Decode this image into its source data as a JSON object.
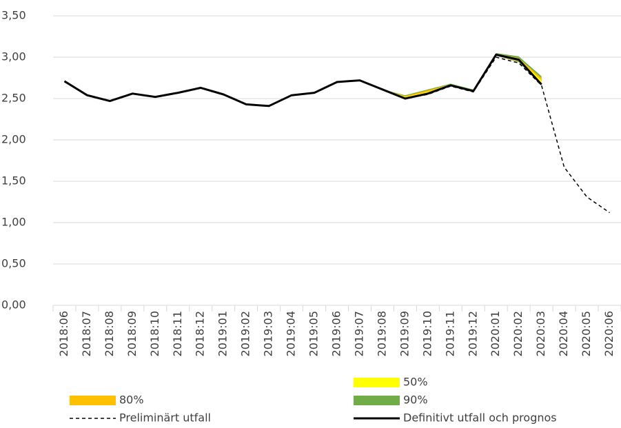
{
  "chart_data": {
    "type": "line",
    "categories": [
      "2018:06",
      "2018:07",
      "2018:08",
      "2018:09",
      "2018:10",
      "2018:11",
      "2018:12",
      "2019:01",
      "2019:02",
      "2019:03",
      "2019:04",
      "2019:05",
      "2019:06",
      "2019:07",
      "2019:08",
      "2019:09",
      "2019:10",
      "2019:11",
      "2019:12",
      "2020:01",
      "2020:02",
      "2020:03",
      "2020:04",
      "2020:05",
      "2020:06"
    ],
    "ylim": [
      0,
      3.5
    ],
    "yticks": [
      {
        "value": 0,
        "label": "0,00"
      },
      {
        "value": 0.5,
        "label": "0,50"
      },
      {
        "value": 1,
        "label": "1,00"
      },
      {
        "value": 1.5,
        "label": "1,50"
      },
      {
        "value": 2,
        "label": "2,00"
      },
      {
        "value": 2.5,
        "label": "2,50"
      },
      {
        "value": 3,
        "label": "3,00"
      },
      {
        "value": 3.5,
        "label": "3,50"
      }
    ],
    "grid": true,
    "series": [
      {
        "name": "90%",
        "kind": "band",
        "color": "#70ad47",
        "upper": [
          null,
          null,
          null,
          null,
          null,
          null,
          null,
          null,
          null,
          null,
          null,
          null,
          null,
          null,
          2.61,
          2.54,
          2.61,
          2.68,
          2.61,
          3.05,
          3.01,
          2.77,
          null,
          null,
          null
        ],
        "lower": [
          null,
          null,
          null,
          null,
          null,
          null,
          null,
          null,
          null,
          null,
          null,
          null,
          null,
          null,
          2.61,
          2.49,
          2.55,
          2.65,
          2.58,
          3.02,
          2.94,
          2.66,
          null,
          null,
          null
        ]
      },
      {
        "name": "80%",
        "kind": "band",
        "color": "#ffc000",
        "upper": [
          null,
          null,
          null,
          null,
          null,
          null,
          null,
          null,
          null,
          null,
          null,
          null,
          null,
          null,
          2.61,
          2.53,
          2.6,
          2.67,
          2.6,
          3.04,
          2.99,
          2.75,
          null,
          null,
          null
        ],
        "lower": [
          null,
          null,
          null,
          null,
          null,
          null,
          null,
          null,
          null,
          null,
          null,
          null,
          null,
          null,
          2.61,
          2.49,
          2.55,
          2.65,
          2.58,
          3.02,
          2.95,
          2.67,
          null,
          null,
          null
        ]
      },
      {
        "name": "50%",
        "kind": "band",
        "color": "#ffff00",
        "upper": [
          null,
          null,
          null,
          null,
          null,
          null,
          null,
          null,
          null,
          null,
          null,
          null,
          null,
          null,
          2.61,
          2.52,
          2.58,
          2.67,
          2.6,
          3.04,
          2.98,
          2.72,
          null,
          null,
          null
        ],
        "lower": [
          null,
          null,
          null,
          null,
          null,
          null,
          null,
          null,
          null,
          null,
          null,
          null,
          null,
          null,
          2.61,
          2.5,
          2.56,
          2.66,
          2.59,
          3.03,
          2.96,
          2.69,
          null,
          null,
          null
        ]
      },
      {
        "name": "Preliminärt utfall",
        "kind": "dashed",
        "color": "#000000",
        "values": [
          null,
          null,
          null,
          null,
          null,
          null,
          null,
          null,
          null,
          null,
          null,
          null,
          null,
          null,
          2.61,
          2.5,
          2.55,
          2.65,
          2.58,
          3.0,
          2.93,
          2.66,
          1.67,
          1.31,
          1.12
        ]
      },
      {
        "name": "Definitivt utfall och prognos",
        "kind": "solid",
        "color": "#000000",
        "values": [
          2.71,
          2.54,
          2.47,
          2.56,
          2.52,
          2.57,
          2.63,
          2.55,
          2.43,
          2.41,
          2.54,
          2.57,
          2.7,
          2.72,
          2.61,
          2.5,
          2.56,
          2.66,
          2.59,
          3.03,
          2.97,
          2.67,
          null,
          null,
          null
        ]
      }
    ]
  }
}
